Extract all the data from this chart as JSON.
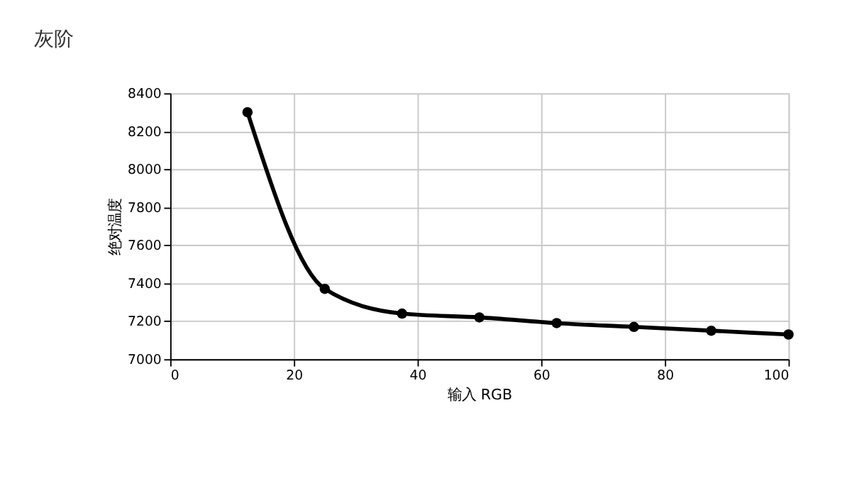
{
  "chart_data": {
    "type": "line",
    "title": "灰阶",
    "xlabel": "输入 RGB",
    "ylabel": "绝对温度",
    "x": [
      12.5,
      25,
      37.5,
      50,
      62.5,
      75,
      87.5,
      100
    ],
    "series": [
      {
        "color": "#000000",
        "values": [
          8300,
          7370,
          7240,
          7220,
          7190,
          7170,
          7150,
          7130
        ]
      }
    ],
    "xlim": [
      0,
      100
    ],
    "xticks": [
      0,
      20,
      40,
      60,
      80,
      100
    ],
    "ylim": [
      7000,
      8400
    ],
    "yticks": [
      7000,
      7200,
      7400,
      7600,
      7800,
      8000,
      8200,
      8400
    ],
    "grid": true,
    "marker": "circle",
    "line_style": "solid"
  }
}
